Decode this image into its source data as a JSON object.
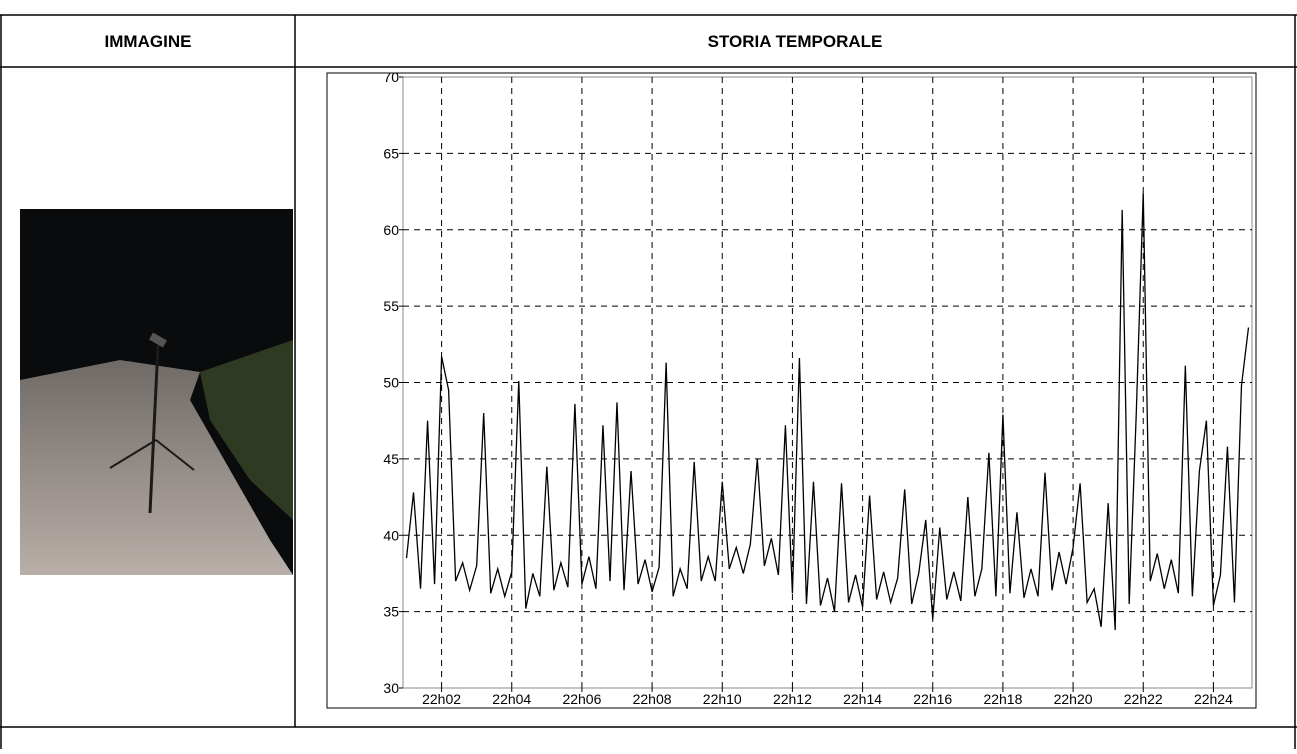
{
  "table": {
    "headers": [
      "IMMAGINE",
      "STORIA TEMPORALE"
    ]
  },
  "chart_data": {
    "type": "line",
    "x": [
      1.0,
      1.2,
      1.4,
      1.6,
      1.8,
      2.0,
      2.2,
      2.4,
      2.6,
      2.8,
      3.0,
      3.2,
      3.4,
      3.6,
      3.8,
      4.0,
      4.2,
      4.4,
      4.6,
      4.8,
      5.0,
      5.2,
      5.4,
      5.6,
      5.8,
      6.0,
      6.2,
      6.4,
      6.6,
      6.8,
      7.0,
      7.2,
      7.4,
      7.6,
      7.8,
      8.0,
      8.2,
      8.4,
      8.6,
      8.8,
      9.0,
      9.2,
      9.4,
      9.6,
      9.8,
      10.0,
      10.2,
      10.4,
      10.6,
      10.8,
      11.0,
      11.2,
      11.4,
      11.6,
      11.8,
      12.0,
      12.2,
      12.4,
      12.6,
      12.8,
      13.0,
      13.2,
      13.4,
      13.6,
      13.8,
      14.0,
      14.2,
      14.4,
      14.6,
      14.8,
      15.0,
      15.2,
      15.4,
      15.6,
      15.8,
      16.0,
      16.2,
      16.4,
      16.6,
      16.8,
      17.0,
      17.2,
      17.4,
      17.6,
      17.8,
      18.0,
      18.2,
      18.4,
      18.6,
      18.8,
      19.0,
      19.2,
      19.4,
      19.6,
      19.8,
      20.0,
      20.2,
      20.4,
      20.6,
      20.8,
      21.0,
      21.2,
      21.4,
      21.6,
      21.8,
      22.0,
      22.2,
      22.4,
      22.6,
      22.8,
      23.0,
      23.2,
      23.4,
      23.6,
      23.8,
      24.0,
      24.2,
      24.4,
      24.6,
      24.8,
      25.0
    ],
    "values": [
      38.5,
      42.8,
      36.5,
      47.5,
      36.8,
      51.7,
      49.5,
      37,
      38.2,
      36.4,
      38,
      48,
      36.2,
      37.8,
      36,
      37.6,
      50.1,
      35.2,
      37.5,
      36,
      44.5,
      36.4,
      38.2,
      36.6,
      48.6,
      36.8,
      38.6,
      36.5,
      47.2,
      37,
      48.7,
      36.4,
      44.2,
      36.8,
      38.4,
      36.3,
      37.9,
      51.3,
      36,
      37.8,
      36.5,
      44.8,
      37,
      38.6,
      37,
      43.5,
      37.8,
      39.2,
      37.5,
      39.4,
      45,
      38,
      39.8,
      37.4,
      47.2,
      36.2,
      51.6,
      35.5,
      43.5,
      35.4,
      37.2,
      35,
      43.4,
      35.6,
      37.4,
      35.3,
      42.6,
      35.8,
      37.6,
      35.6,
      37.2,
      43,
      35.5,
      37.5,
      41,
      34.5,
      40.5,
      35.8,
      37.6,
      35.7,
      42.5,
      36,
      37.8,
      45.4,
      36,
      47.9,
      36.2,
      41.5,
      35.9,
      37.8,
      36,
      44.1,
      36.4,
      38.9,
      36.8,
      39.2,
      43.4,
      35.6,
      36.5,
      34,
      42.1,
      33.8,
      61.3,
      35.5,
      47.9,
      62.4,
      37,
      38.8,
      36.5,
      38.4,
      36.2,
      51.1,
      36,
      44.2,
      47.5,
      35.4,
      37.4,
      45.8,
      35.6,
      49.8,
      53.6
    ],
    "color": "#000000",
    "xlim": [
      0.9,
      25.1
    ],
    "xticks": [
      {
        "value": 2,
        "label": "22h02"
      },
      {
        "value": 4,
        "label": "22h04"
      },
      {
        "value": 6,
        "label": "22h06"
      },
      {
        "value": 8,
        "label": "22h08"
      },
      {
        "value": 10,
        "label": "22h10"
      },
      {
        "value": 12,
        "label": "22h12"
      },
      {
        "value": 14,
        "label": "22h14"
      },
      {
        "value": 16,
        "label": "22h16"
      },
      {
        "value": 18,
        "label": "22h18"
      },
      {
        "value": 20,
        "label": "22h20"
      },
      {
        "value": 22,
        "label": "22h22"
      },
      {
        "value": 24,
        "label": "22h24"
      }
    ],
    "ylim": [
      30,
      70
    ],
    "yticks": [
      30,
      35,
      40,
      45,
      50,
      55,
      60,
      65,
      70
    ],
    "grid": true
  }
}
